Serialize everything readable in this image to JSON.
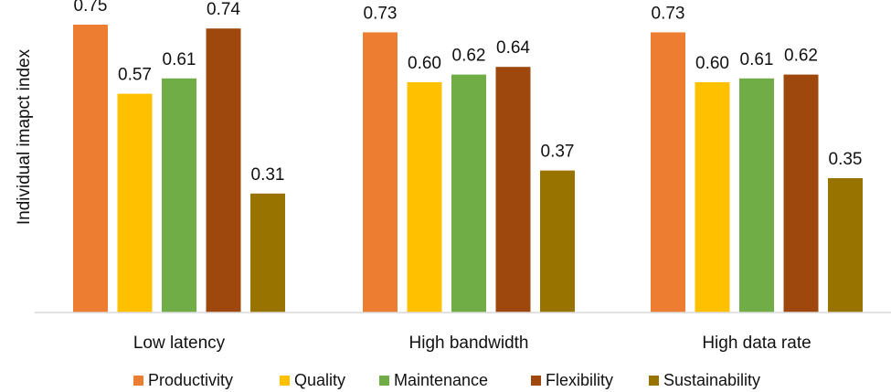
{
  "chart_data": {
    "type": "bar",
    "title": "",
    "xlabel": "",
    "ylabel": "Individual imapct index",
    "ylim": [
      0,
      0.8
    ],
    "grid": false,
    "legend_position": "bottom",
    "categories": [
      "Low latency",
      "High bandwidth",
      "High data rate"
    ],
    "series": [
      {
        "name": "Productivity",
        "color": "#ED7D31",
        "values": [
          0.75,
          0.73,
          0.73
        ],
        "labels": [
          "0.75",
          "0.73",
          "0.73"
        ]
      },
      {
        "name": "Quality",
        "color": "#FFC000",
        "values": [
          0.57,
          0.6,
          0.6
        ],
        "labels": [
          "0.57",
          "0.60",
          "0.60"
        ]
      },
      {
        "name": "Maintenance",
        "color": "#70AD47",
        "values": [
          0.61,
          0.62,
          0.61
        ],
        "labels": [
          "0.61",
          "0.62",
          "0.61"
        ]
      },
      {
        "name": "Flexibility",
        "color": "#9E480E",
        "values": [
          0.74,
          0.64,
          0.62
        ],
        "labels": [
          "0.74",
          "0.64",
          "0.62"
        ]
      },
      {
        "name": "Sustainability",
        "color": "#997300",
        "values": [
          0.31,
          0.37,
          0.35
        ],
        "labels": [
          "0.31",
          "0.37",
          "0.35"
        ]
      }
    ]
  }
}
